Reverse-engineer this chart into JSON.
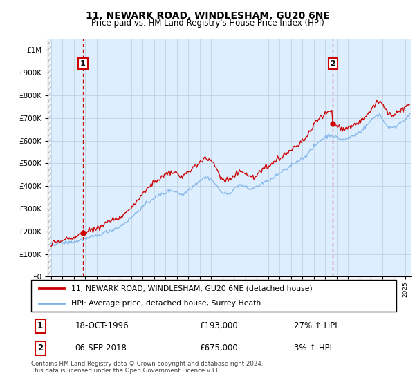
{
  "title": "11, NEWARK ROAD, WINDLESHAM, GU20 6NE",
  "subtitle": "Price paid vs. HM Land Registry's House Price Index (HPI)",
  "sale1_date": "18-OCT-1996",
  "sale1_price": 193000,
  "sale1_label": "27% ↑ HPI",
  "sale1_year": 1996.79,
  "sale2_date": "06-SEP-2018",
  "sale2_price": 675000,
  "sale2_label": "3% ↑ HPI",
  "sale2_year": 2018.67,
  "legend_line1": "11, NEWARK ROAD, WINDLESHAM, GU20 6NE (detached house)",
  "legend_line2": "HPI: Average price, detached house, Surrey Heath",
  "footer": "Contains HM Land Registry data © Crown copyright and database right 2024.\nThis data is licensed under the Open Government Licence v3.0.",
  "hpi_color": "#7fb3e8",
  "price_color": "#cc0000",
  "vline_color": "#cc0000",
  "ylim_max": 1050000,
  "ylim_min": 0,
  "xlim_min": 1993.7,
  "xlim_max": 2025.5,
  "chart_bg": "#ddeeff",
  "grid_color": "#bbccdd"
}
